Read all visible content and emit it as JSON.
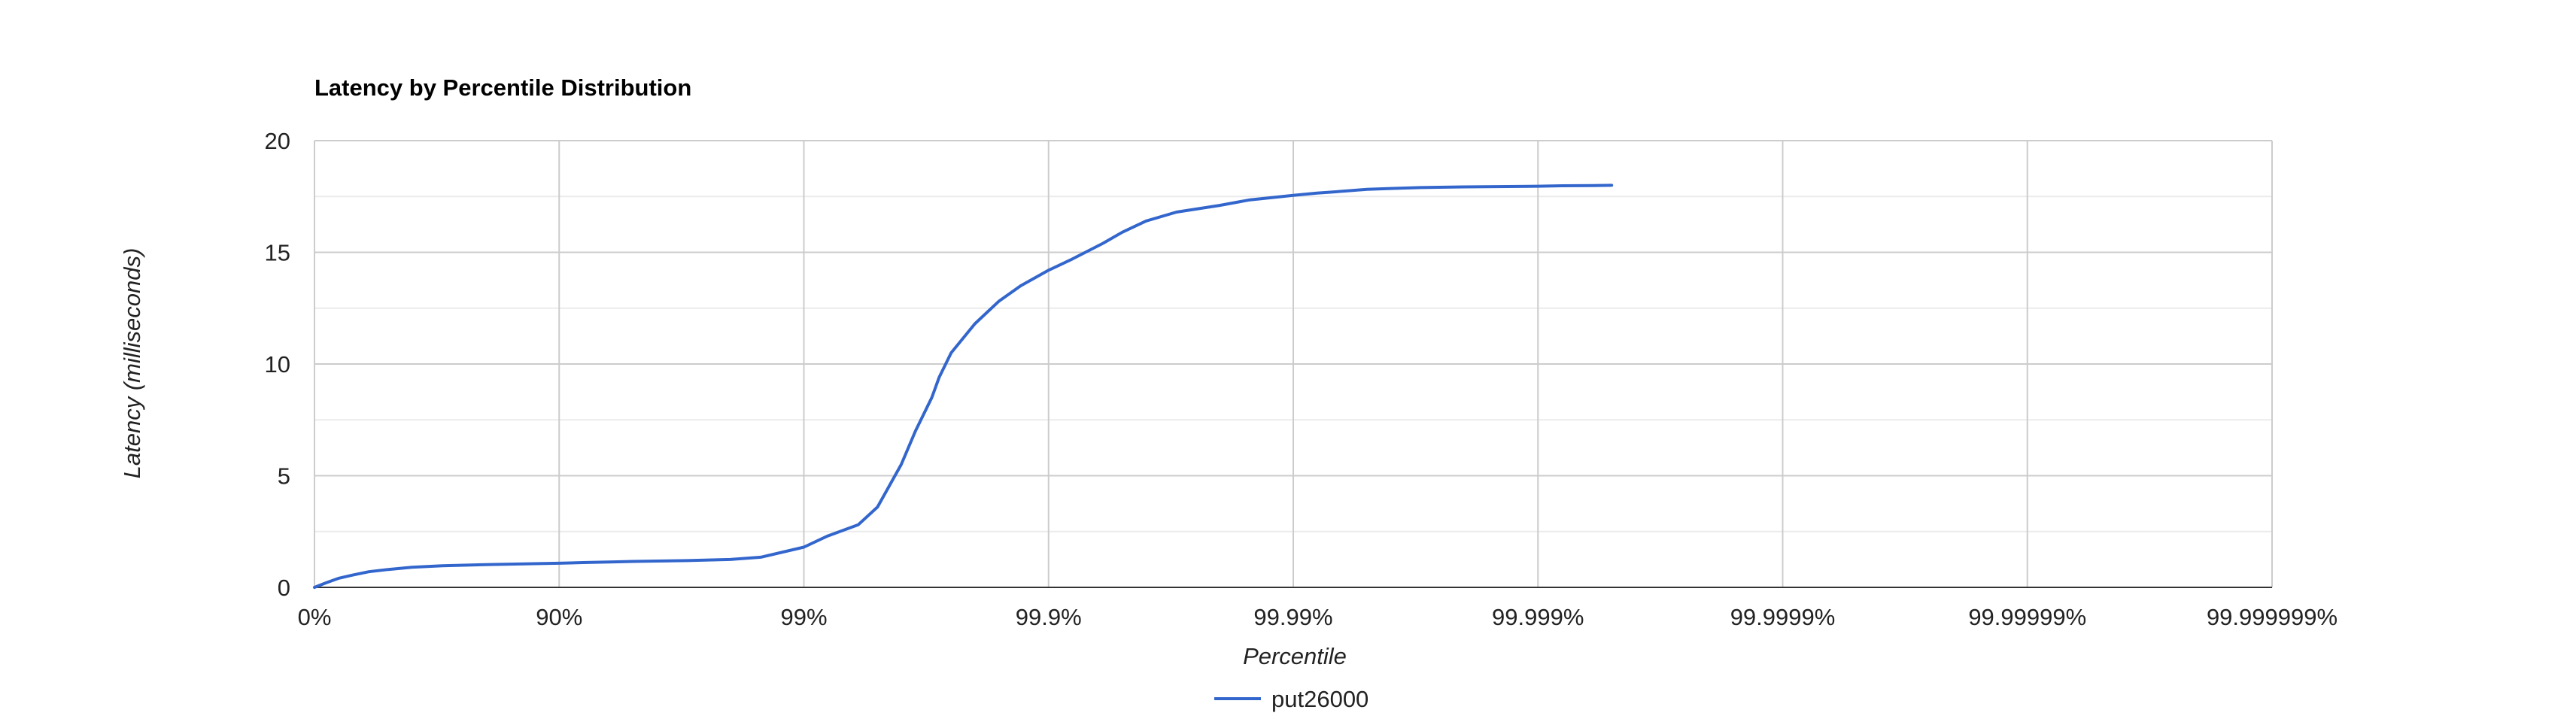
{
  "chart_data": {
    "type": "line",
    "title": "Latency by Percentile Distribution",
    "xlabel": "Percentile",
    "ylabel": "Latency (milliseconds)",
    "x_scale": "log-inverse-percentile",
    "x_tick_labels": [
      "0%",
      "90%",
      "99%",
      "99.9%",
      "99.99%",
      "99.999%",
      "99.9999%",
      "99.99999%",
      "99.999999%"
    ],
    "y_ticks": [
      "0",
      "5",
      "10",
      "15",
      "20"
    ],
    "ylim": [
      0,
      20
    ],
    "grid": true,
    "legend_position": "bottom",
    "series": [
      {
        "name": "put26000",
        "color": "#3366cc",
        "x": [
          "0%",
          "10%",
          "20%",
          "30%",
          "40%",
          "50%",
          "60%",
          "70%",
          "80%",
          "90%",
          "92%",
          "94%",
          "95%",
          "96%",
          "97%",
          "98%",
          "98.5%",
          "99%",
          "99.2%",
          "99.4%",
          "99.5%",
          "99.6%",
          "99.65%",
          "99.7%",
          "99.72%",
          "99.75%",
          "99.8%",
          "99.84%",
          "99.87%",
          "99.9%",
          "99.92%",
          "99.94%",
          "99.95%",
          "99.96%",
          "99.97%",
          "99.98%",
          "99.985%",
          "99.99%",
          "99.992%",
          "99.994%",
          "99.995%",
          "99.996%",
          "99.997%",
          "99.998%",
          "99.999%",
          "99.9992%",
          "99.9994%",
          "99.9995%"
        ],
        "values": [
          0.0,
          0.2,
          0.4,
          0.55,
          0.7,
          0.8,
          0.9,
          0.97,
          1.02,
          1.08,
          1.11,
          1.14,
          1.16,
          1.18,
          1.2,
          1.25,
          1.35,
          1.8,
          2.3,
          2.8,
          3.6,
          5.5,
          7.0,
          8.5,
          9.4,
          10.5,
          11.8,
          12.8,
          13.5,
          14.2,
          14.7,
          15.4,
          15.9,
          16.4,
          16.8,
          17.1,
          17.35,
          17.55,
          17.65,
          17.75,
          17.82,
          17.86,
          17.9,
          17.93,
          17.96,
          17.98,
          17.99,
          18.0
        ]
      }
    ]
  }
}
